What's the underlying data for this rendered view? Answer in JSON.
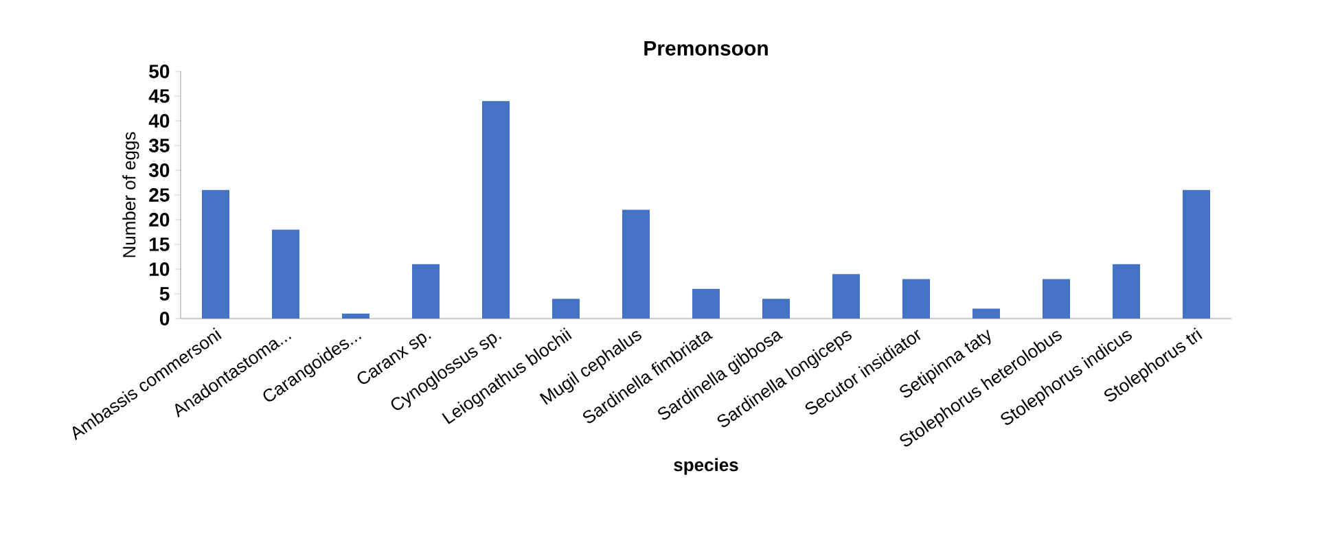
{
  "chart_data": {
    "type": "bar",
    "title": "Premonsoon",
    "xlabel": "species",
    "ylabel": "Number of eggs",
    "categories": [
      "Ambassis commersoni",
      "Anadontastoma...",
      "Carangoides...",
      "Caranx sp.",
      "Cynoglossus sp.",
      "Leiognathus blochii",
      "Mugil cephalus",
      "Sardinella fimbriata",
      "Sardinella gibbosa",
      "Sardinella longiceps",
      "Secutor insidiator",
      "Setipinna taty",
      "Stolephorus heterolobus",
      "Stolephorus indicus",
      "Stolephorus tri"
    ],
    "values": [
      26,
      18,
      1,
      11,
      44,
      4,
      22,
      6,
      4,
      9,
      8,
      2,
      8,
      11,
      26
    ],
    "color": "#4472c4",
    "ylim": [
      0,
      50
    ],
    "yticks": [
      0,
      5,
      10,
      15,
      20,
      25,
      30,
      35,
      40,
      45,
      50
    ],
    "grid": false
  }
}
